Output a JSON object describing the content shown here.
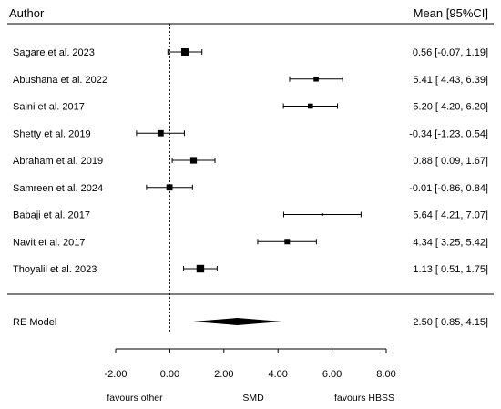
{
  "chart_data": {
    "type": "forest",
    "header_left": "Author",
    "header_right": "Mean [95%CI]",
    "studies": [
      {
        "label": "Sagare et al. 2023",
        "estimate": 0.56,
        "lower": -0.07,
        "upper": 1.19,
        "ci_text": "0.56 [-0.07, 1.19]",
        "weight": 1.0
      },
      {
        "label": "Abushana et al. 2022",
        "estimate": 5.41,
        "lower": 4.43,
        "upper": 6.39,
        "ci_text": "5.41 [ 4.43, 6.39]",
        "weight": 0.7
      },
      {
        "label": "Saini et al. 2017",
        "estimate": 5.2,
        "lower": 4.2,
        "upper": 6.2,
        "ci_text": "5.20 [ 4.20, 6.20]",
        "weight": 0.7
      },
      {
        "label": "Shetty et al. 2019",
        "estimate": -0.34,
        "lower": -1.23,
        "upper": 0.54,
        "ci_text": "-0.34 [-1.23, 0.54]",
        "weight": 0.85
      },
      {
        "label": "Abraham et al. 2019",
        "estimate": 0.88,
        "lower": 0.09,
        "upper": 1.67,
        "ci_text": "0.88 [ 0.09, 1.67]",
        "weight": 0.9
      },
      {
        "label": "Samreen et al. 2024",
        "estimate": -0.01,
        "lower": -0.86,
        "upper": 0.84,
        "ci_text": "-0.01 [-0.86, 0.84]",
        "weight": 0.85
      },
      {
        "label": "Babaji et al. 2017",
        "estimate": 5.64,
        "lower": 4.21,
        "upper": 7.07,
        "ci_text": "5.64 [ 4.21, 7.07]",
        "weight": 0.3
      },
      {
        "label": "Navit et al. 2017",
        "estimate": 4.34,
        "lower": 3.25,
        "upper": 5.42,
        "ci_text": "4.34 [ 3.25, 5.42]",
        "weight": 0.75
      },
      {
        "label": "Thoyalil et al. 2023",
        "estimate": 1.13,
        "lower": 0.51,
        "upper": 1.75,
        "ci_text": "1.13 [ 0.51, 1.75]",
        "weight": 1.05
      }
    ],
    "summary": {
      "label": "RE Model",
      "estimate": 2.5,
      "lower": 0.85,
      "upper": 4.15,
      "ci_text": "2.50 [ 0.85, 4.15]"
    },
    "xlim": [
      -2,
      8
    ],
    "xticks": [
      -2,
      0,
      2,
      4,
      6,
      8
    ],
    "xtick_labels": [
      "-2.00",
      "0.00",
      "2.00",
      "4.00",
      "6.00",
      "8.00"
    ],
    "reference_line": 0,
    "xlabel": "SMD",
    "label_left": "favours other",
    "label_right": "favours HBSS"
  }
}
